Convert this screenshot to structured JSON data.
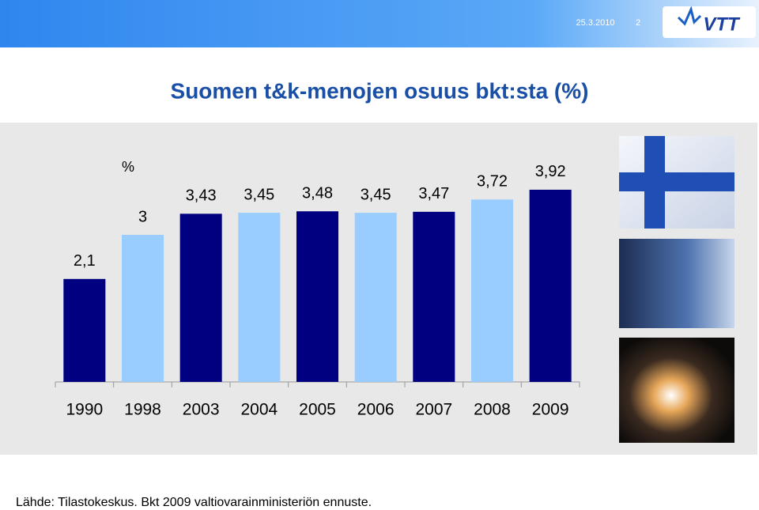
{
  "header": {
    "date": "25.3.2010",
    "page": "2",
    "logo": "VTT"
  },
  "chart_data": {
    "type": "bar",
    "title": "Suomen t&k-menojen osuus bkt:sta (%)",
    "unit_label": "%",
    "categories": [
      "1990",
      "1998",
      "2003",
      "2004",
      "2005",
      "2006",
      "2007",
      "2008",
      "2009"
    ],
    "values": [
      2.1,
      3,
      3.43,
      3.45,
      3.48,
      3.45,
      3.47,
      3.72,
      3.92
    ],
    "value_labels": [
      "2,1",
      "3",
      "3,43",
      "3,45",
      "3,48",
      "3,45",
      "3,47",
      "3,72",
      "3,92"
    ],
    "colors": [
      "#000080",
      "#99ccff",
      "#000080",
      "#99ccff",
      "#000080",
      "#99ccff",
      "#000080",
      "#99ccff",
      "#000080"
    ],
    "ylim": [
      0,
      4.5
    ]
  },
  "source": "Lähde: Tilastokeskus. Bkt 2009 valtiovarainministeriön ennuste."
}
